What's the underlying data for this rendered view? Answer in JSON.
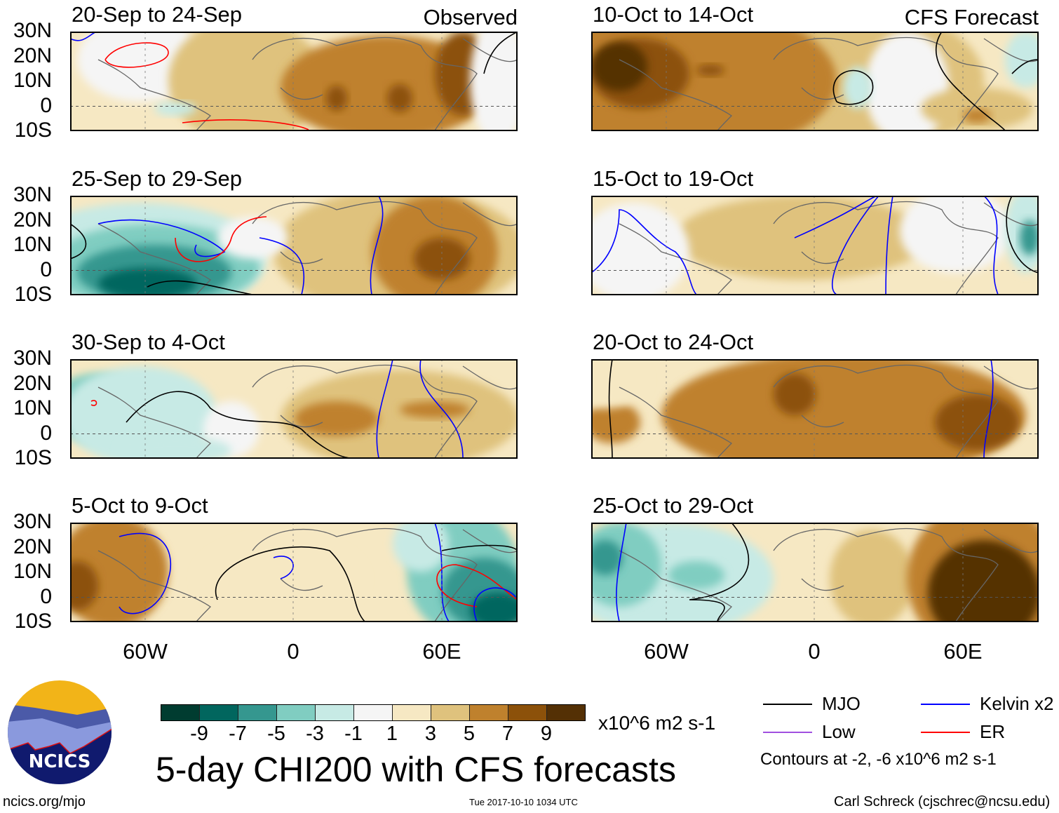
{
  "panels_left": [
    {
      "title": "20-Sep to 24-Sep",
      "label": "Observed"
    },
    {
      "title": "25-Sep to 29-Sep"
    },
    {
      "title": "30-Sep to 4-Oct"
    },
    {
      "title": "5-Oct to 9-Oct"
    }
  ],
  "panels_right": [
    {
      "title": "10-Oct to 14-Oct",
      "label": "CFS Forecast"
    },
    {
      "title": "15-Oct to 19-Oct"
    },
    {
      "title": "20-Oct to 24-Oct"
    },
    {
      "title": "25-Oct to 29-Oct"
    }
  ],
  "lat_labels": [
    "30N",
    "20N",
    "10N",
    "0",
    "10S"
  ],
  "lon_labels": [
    "60W",
    "0",
    "60E"
  ],
  "colorbar": {
    "colors": [
      "#003c30",
      "#01665e",
      "#35978f",
      "#80cdc1",
      "#c7eae5",
      "#f5f5f5",
      "#f6e8c3",
      "#dfc27d",
      "#bf812d",
      "#8c510a",
      "#543005"
    ],
    "ticks": [
      "-9",
      "-7",
      "-5",
      "-3",
      "-1",
      "1",
      "3",
      "5",
      "7",
      "9"
    ],
    "units": "x10^6 m2 s-1"
  },
  "title": "5-day CHI200 with CFS forecasts",
  "legend": {
    "items": [
      {
        "label": "MJO",
        "color": "#000000"
      },
      {
        "label": "Low",
        "color": "#a050e0"
      },
      {
        "label": "Kelvin x2",
        "color": "#0000ff"
      },
      {
        "label": "ER",
        "color": "#ff0000"
      }
    ],
    "note": "Contours at -2, -6 x10^6 m2 s-1"
  },
  "logo_text": "NCICS",
  "footer": {
    "url": "ncics.org/mjo",
    "timestamp": "Tue 2017-10-10 1034 UTC",
    "credit": "Carl Schreck (cjschrec@ncsu.edu)"
  }
}
